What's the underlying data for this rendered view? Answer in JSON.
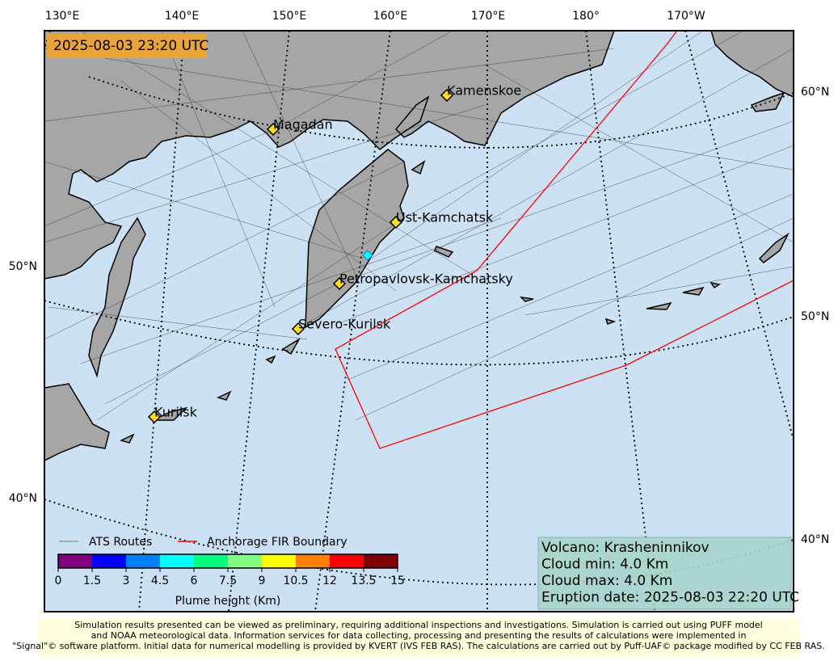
{
  "timestamp": "2025-08-03 23:20 UTC",
  "longitude_labels": [
    "130°E",
    "140°E",
    "150°E",
    "160°E",
    "170°E",
    "180°",
    "170°W"
  ],
  "latitude_labels_left": [
    "50°N",
    "40°N"
  ],
  "latitude_labels_right": [
    "60°N",
    "50°N",
    "40°N"
  ],
  "places": [
    "Kamenskoe",
    "Magadan",
    "Ust-Kamchatsk",
    "Petropavlovsk-Kamchatsky",
    "Severo-Kurilsk",
    "Kurilsk"
  ],
  "legend": {
    "routes": "ATS Routes",
    "fir": "Anchorage FIR Boundary"
  },
  "colorbar": {
    "label": "Plume height (Km)",
    "ticks": [
      0,
      1.5,
      3,
      4.5,
      6,
      7.5,
      9,
      10.5,
      12,
      13.5,
      15
    ],
    "colors": [
      "#800080",
      "#0000ff",
      "#0080ff",
      "#00ffff",
      "#00ff80",
      "#80ff80",
      "#ffff00",
      "#ff8000",
      "#ff0000",
      "#800000"
    ]
  },
  "info": [
    "Volcano: Krasheninnikov",
    "Cloud min: 4.0 Km",
    "Cloud max: 4.0 Km",
    "Eruption date: 2025-08-03 22:20 UTC"
  ],
  "footer": [
    "Simulation results presented can be viewed as preliminary, requiring additional inspections and investigations. Simulation is carried out using PUFF model",
    "and NOAA meteorological data. Information services for data collecting, processing and presenting the results of calculations were implemented in",
    "\"Signal\"© software platform. Initial data for numerical modelling is provided by KVERT (IVS FEB RAS). The calculations are carried out by Puff-UAF© package modified by CC FEB RAS."
  ]
}
